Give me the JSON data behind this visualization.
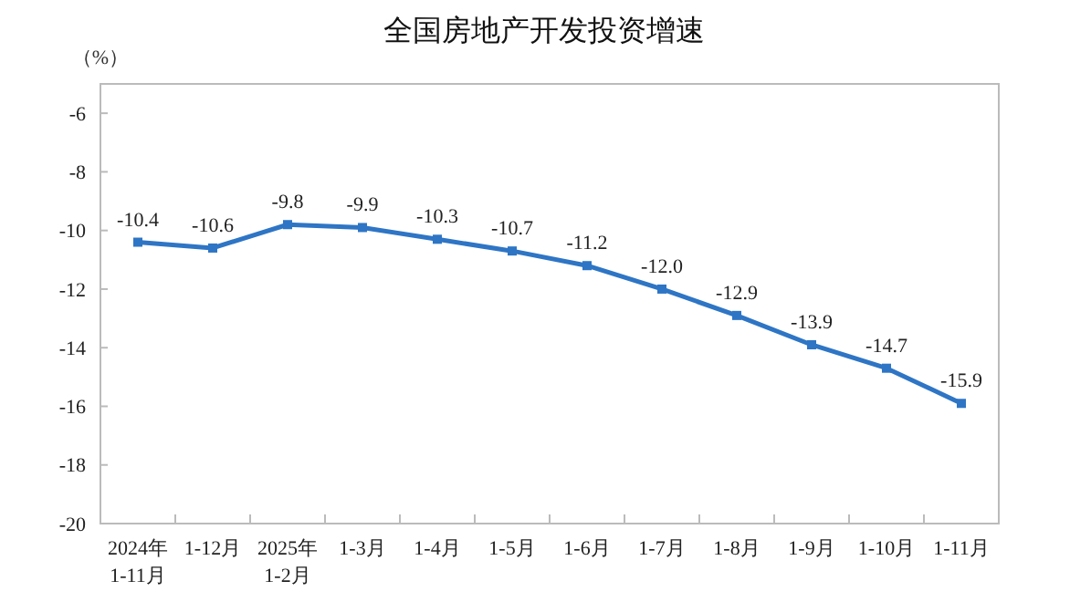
{
  "chart_data": {
    "type": "line",
    "title": "全国房地产开发投资增速",
    "ylabel": "（%）",
    "categories": [
      "2024年\n1-11月",
      "1-12月",
      "2025年\n1-2月",
      "1-3月",
      "1-4月",
      "1-5月",
      "1-6月",
      "1-7月",
      "1-8月",
      "1-9月",
      "1-10月",
      "1-11月"
    ],
    "series": [
      {
        "color": "#2e75c5",
        "values": [
          -10.4,
          -10.6,
          -9.8,
          -9.9,
          -10.3,
          -10.7,
          -11.2,
          -12.0,
          -12.9,
          -13.9,
          -14.7,
          -15.9
        ]
      }
    ],
    "ylim": [
      -20,
      -5
    ],
    "yticks": [
      -20,
      -18,
      -16,
      -14,
      -12,
      -10,
      -8,
      -6
    ],
    "value_labels": [
      "-10.4",
      "-10.6",
      "-9.8",
      "-9.9",
      "-10.3",
      "-10.7",
      "-11.2",
      "-12.0",
      "-12.9",
      "-13.9",
      "-14.7",
      "-15.9"
    ],
    "grid": false,
    "marker": "square",
    "line_style": "solid"
  }
}
